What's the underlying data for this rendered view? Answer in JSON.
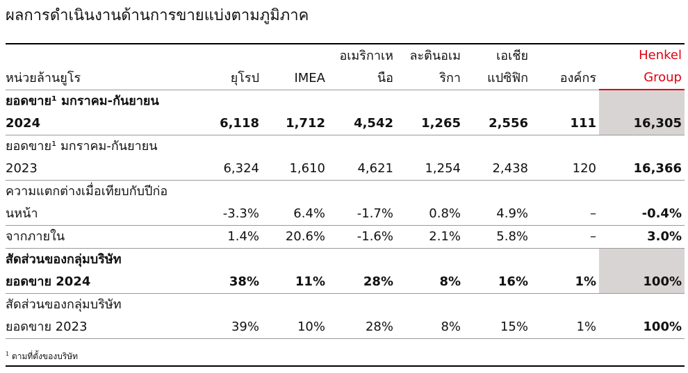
{
  "title": "ผลการดำเนินงานด้านการขายแบ่งตามภูมิภาค",
  "table": {
    "unit_label": "หน่วยล้านยูโร",
    "columns": [
      [
        "ยุโรป"
      ],
      [
        "IMEA"
      ],
      [
        "อเมริกาเห",
        "นือ"
      ],
      [
        "ละตินอเม",
        "ริกา"
      ],
      [
        "เอเชีย",
        "แปซิฟิก"
      ],
      [
        "องค์กร"
      ],
      [
        "Henkel",
        "Group"
      ]
    ],
    "rows": [
      {
        "label": [
          "ยอดขาย¹ มกราคม-กันยายน",
          "2024"
        ],
        "bold": true,
        "highlight": true,
        "cells": [
          "6,118",
          "1,712",
          "4,542",
          "1,265",
          "2,556",
          "111",
          "16,305"
        ]
      },
      {
        "label": [
          "ยอดขาย¹ มกราคม-กันยายน",
          "2023"
        ],
        "bold": false,
        "highlight": false,
        "cells": [
          "6,324",
          "1,610",
          "4,621",
          "1,254",
          "2,438",
          "120",
          "16,366"
        ]
      },
      {
        "label": [
          "ความแตกต่างเมื่อเทียบกับปีก่อ",
          "นหน้า"
        ],
        "bold": false,
        "highlight": false,
        "cells": [
          "-3.3%",
          "6.4%",
          "-1.7%",
          "0.8%",
          "4.9%",
          "–",
          "-0.4%"
        ]
      },
      {
        "label": [
          "จากภายใน"
        ],
        "bold": false,
        "highlight": false,
        "cells": [
          "1.4%",
          "20.6%",
          "-1.6%",
          "2.1%",
          "5.8%",
          "–",
          "3.0%"
        ]
      },
      {
        "label": [
          "สัดส่วนของกลุ่มบริษัท",
          "ยอดขาย 2024"
        ],
        "bold": true,
        "highlight": true,
        "cells": [
          "38%",
          "11%",
          "28%",
          "8%",
          "16%",
          "1%",
          "100%"
        ]
      },
      {
        "label": [
          "สัดส่วนของกลุ่มบริษัท",
          "ยอดขาย 2023"
        ],
        "bold": false,
        "highlight": false,
        "cells": [
          "39%",
          "10%",
          "28%",
          "8%",
          "15%",
          "1%",
          "100%"
        ]
      }
    ]
  },
  "footnote": {
    "marker": "1",
    "text": "ตามที่ตั้งของบริษัท"
  }
}
